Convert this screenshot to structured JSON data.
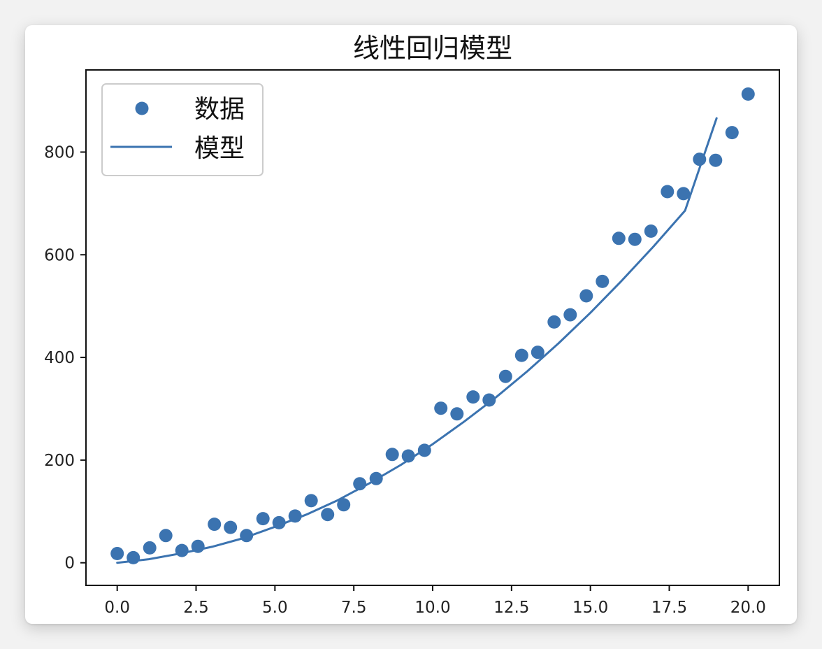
{
  "chart_data": {
    "type": "scatter",
    "title": "线性回归模型",
    "xlabel": "",
    "ylabel": "",
    "xlim": [
      -0.99,
      20.99
    ],
    "ylim": [
      -44,
      960
    ],
    "xticks": [
      0,
      2.5,
      5,
      7.5,
      10,
      12.5,
      15,
      17.5,
      20
    ],
    "xtick_labels": [
      "0.0",
      "2.5",
      "5.0",
      "7.5",
      "10.0",
      "12.5",
      "15.0",
      "17.5",
      "20.0"
    ],
    "yticks": [
      0,
      200,
      400,
      600,
      800
    ],
    "ytick_labels": [
      "0",
      "200",
      "400",
      "600",
      "800"
    ],
    "grid": false,
    "legend_position": "upper-left",
    "series": [
      {
        "name": "数据",
        "kind": "scatter",
        "color": "#3b73b0",
        "x": [
          0.0,
          0.51,
          1.03,
          1.54,
          2.05,
          2.56,
          3.08,
          3.59,
          4.1,
          4.62,
          5.13,
          5.64,
          6.15,
          6.67,
          7.18,
          7.69,
          8.21,
          8.72,
          9.23,
          9.74,
          10.26,
          10.77,
          11.28,
          11.79,
          12.31,
          12.82,
          13.33,
          13.85,
          14.36,
          14.87,
          15.38,
          15.9,
          16.41,
          16.92,
          17.44,
          17.95,
          18.46,
          18.97,
          19.49,
          20.0
        ],
        "y": [
          18,
          10,
          29,
          53,
          24,
          32,
          75,
          69,
          53,
          86,
          78,
          91,
          121,
          94,
          113,
          154,
          164,
          211,
          208,
          219,
          301,
          290,
          323,
          317,
          363,
          404,
          410,
          469,
          483,
          520,
          548,
          632,
          630,
          646,
          723,
          719,
          786,
          784,
          838,
          913
        ]
      },
      {
        "name": "模型",
        "kind": "line",
        "color": "#3b73b0",
        "x": [
          0,
          1,
          2,
          3,
          4,
          5,
          6,
          7,
          8,
          9,
          10,
          11,
          12,
          13,
          14,
          15,
          16,
          17,
          18,
          19
        ],
        "y": [
          0,
          7,
          18,
          31,
          48,
          70,
          94,
          122,
          155,
          191,
          231,
          275,
          322,
          373,
          428,
          487,
          550,
          616,
          686,
          866
        ]
      }
    ]
  }
}
